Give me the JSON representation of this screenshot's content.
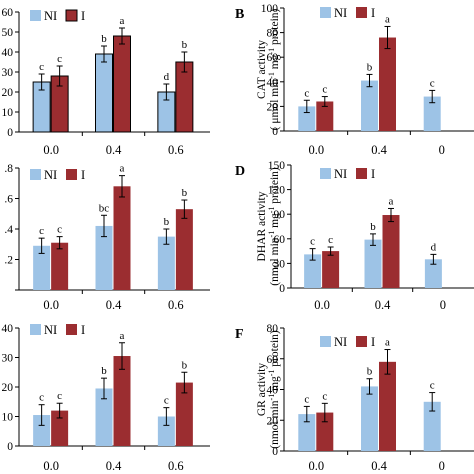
{
  "colors": {
    "NI": "#9dc3e6",
    "I": "#9b2d30",
    "axis": "#000000"
  },
  "legend": {
    "NI": "NI",
    "I": "I"
  },
  "chart_data": [
    {
      "id": "A",
      "type": "bar",
      "letter": "",
      "ylabel_main": "",
      "ylabel_units": "",
      "ylabel_super": [],
      "categories": [
        "0.0",
        "0.4",
        "0.6"
      ],
      "ylim": [
        0,
        60
      ],
      "yticks": [
        0,
        10,
        20,
        30,
        40,
        50,
        60
      ],
      "ytick_labels": [
        "0",
        "10",
        "20",
        "30",
        "40",
        "50",
        "60"
      ],
      "ytick_shown": [
        true,
        true,
        true,
        true,
        true,
        true,
        true
      ],
      "bar_outline": true,
      "series": [
        {
          "name": "NI",
          "values": [
            25,
            39,
            20
          ],
          "errors": [
            4,
            4,
            4
          ],
          "letters": [
            "c",
            "b",
            "d"
          ]
        },
        {
          "name": "I",
          "values": [
            28,
            48,
            35
          ],
          "errors": [
            5,
            4,
            5
          ],
          "letters": [
            "c",
            "a",
            "b"
          ]
        }
      ]
    },
    {
      "id": "B",
      "type": "bar",
      "letter": "B",
      "ylabel_main": "CAT activity",
      "ylabel_units": "( μmol min",
      "ylabel_super": [
        "-1",
        " mg",
        "-1",
        " protein)"
      ],
      "categories": [
        "0.0",
        "0.4",
        "0"
      ],
      "ylim": [
        0,
        100
      ],
      "yticks": [
        0,
        20,
        40,
        60,
        80,
        100
      ],
      "ytick_labels": [
        "0",
        "20",
        "40",
        "60",
        "80",
        "100"
      ],
      "ytick_shown": [
        true,
        true,
        true,
        true,
        true,
        true
      ],
      "bar_outline": false,
      "series": [
        {
          "name": "NI",
          "values": [
            20,
            41,
            28
          ],
          "errors": [
            5,
            5,
            5
          ],
          "letters": [
            "c",
            "b",
            "c"
          ]
        },
        {
          "name": "I",
          "values": [
            24,
            76,
            null
          ],
          "errors": [
            4,
            9,
            null
          ],
          "letters": [
            "c",
            "a",
            ""
          ]
        }
      ]
    },
    {
      "id": "C",
      "type": "bar",
      "letter": "",
      "ylabel_main": "",
      "ylabel_units": "",
      "ylabel_super": [],
      "categories": [
        "0.0",
        "0.4",
        "0.6"
      ],
      "ylim": [
        0,
        0.8
      ],
      "yticks": [
        0,
        0.2,
        0.4,
        0.6,
        0.8
      ],
      "ytick_labels": [
        "0",
        ".2",
        ".4",
        ".6",
        ".8"
      ],
      "ytick_shown": [
        false,
        true,
        true,
        true,
        true
      ],
      "bar_outline": false,
      "series": [
        {
          "name": "NI",
          "values": [
            0.29,
            0.42,
            0.35
          ],
          "errors": [
            0.05,
            0.07,
            0.05
          ],
          "letters": [
            "c",
            "bc",
            "b"
          ]
        },
        {
          "name": "I",
          "values": [
            0.31,
            0.68,
            0.53
          ],
          "errors": [
            0.04,
            0.07,
            0.06
          ],
          "letters": [
            "c",
            "a",
            "b"
          ]
        }
      ]
    },
    {
      "id": "D",
      "type": "bar",
      "letter": "D",
      "ylabel_main": "DHAR activity",
      "ylabel_units": "(nmol min",
      "ylabel_super": [
        "-1",
        " mg",
        "-1",
        " protein)"
      ],
      "categories": [
        "0.0",
        "0.4",
        "0"
      ],
      "ylim": [
        0,
        150
      ],
      "yticks": [
        0,
        30,
        60,
        90,
        120,
        150
      ],
      "ytick_labels": [
        "0",
        "30",
        "60",
        "90",
        "120",
        "150"
      ],
      "ytick_shown": [
        true,
        true,
        true,
        true,
        true,
        true
      ],
      "bar_outline": false,
      "series": [
        {
          "name": "NI",
          "values": [
            41,
            59,
            35
          ],
          "errors": [
            7,
            7,
            6
          ],
          "letters": [
            "c",
            "b",
            "d"
          ]
        },
        {
          "name": "I",
          "values": [
            45,
            89,
            null
          ],
          "errors": [
            5,
            8,
            null
          ],
          "letters": [
            "c",
            "a",
            ""
          ]
        }
      ]
    },
    {
      "id": "E",
      "type": "bar",
      "letter": "",
      "ylabel_main": "",
      "ylabel_units": "",
      "ylabel_super": [],
      "categories": [
        "0.0",
        "0.4",
        "0.6"
      ],
      "ylim": [
        0,
        40
      ],
      "yticks": [
        0,
        10,
        20,
        30,
        40
      ],
      "ytick_labels": [
        "0",
        "10",
        "20",
        "30",
        "40"
      ],
      "ytick_shown": [
        true,
        true,
        true,
        true,
        true
      ],
      "bar_outline": false,
      "series": [
        {
          "name": "NI",
          "values": [
            10.5,
            19.5,
            10
          ],
          "errors": [
            3.5,
            3.5,
            3
          ],
          "letters": [
            "c",
            "b",
            "c"
          ]
        },
        {
          "name": "I",
          "values": [
            12,
            30.5,
            21.5
          ],
          "errors": [
            2.5,
            4.5,
            3.5
          ],
          "letters": [
            "c",
            "a",
            "b"
          ]
        }
      ]
    },
    {
      "id": "F",
      "type": "bar",
      "letter": "F",
      "ylabel_main": "GR activity",
      "ylabel_units": "(nmol min",
      "ylabel_super": [
        "-1",
        " mg",
        "-1",
        " protein)"
      ],
      "categories": [
        "0.0",
        "0.4",
        "0"
      ],
      "ylim": [
        0,
        80
      ],
      "yticks": [
        0,
        20,
        40,
        60,
        80
      ],
      "ytick_labels": [
        "0",
        "20",
        "40",
        "60",
        "80"
      ],
      "ytick_shown": [
        true,
        true,
        true,
        true,
        true
      ],
      "bar_outline": false,
      "series": [
        {
          "name": "NI",
          "values": [
            24,
            42,
            32
          ],
          "errors": [
            5,
            5,
            6
          ],
          "letters": [
            "c",
            "b",
            "c"
          ]
        },
        {
          "name": "I",
          "values": [
            25,
            58,
            null
          ],
          "errors": [
            6,
            8,
            null
          ],
          "letters": [
            "c",
            "a",
            ""
          ]
        }
      ]
    }
  ]
}
